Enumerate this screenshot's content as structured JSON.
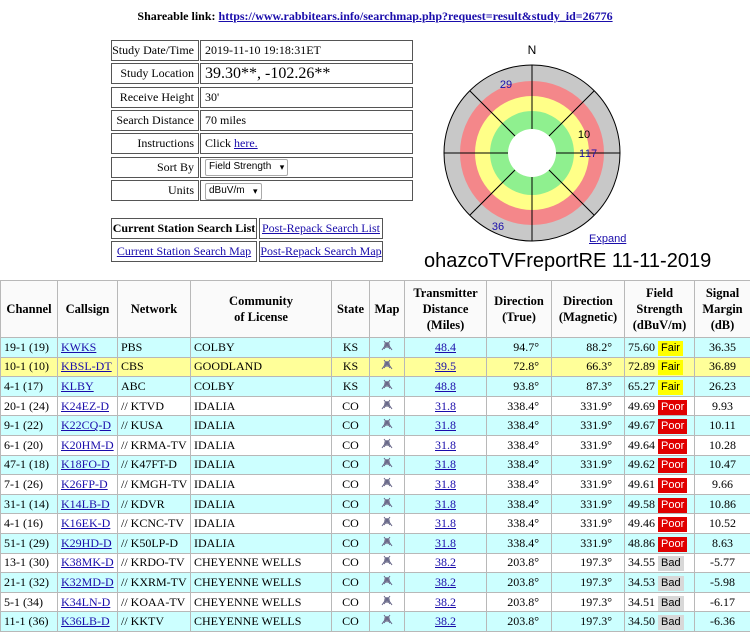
{
  "share": {
    "label": "Shareable link:",
    "url": "https://www.rabbitears.info/searchmap.php?request=result&study_id=26776"
  },
  "form": [
    {
      "label": "Study Date/Time",
      "value": "2019-11-10 19:18:31ET"
    },
    {
      "label": "Study Location",
      "value": "39.30**, -102.26**"
    },
    {
      "label": "Receive Height",
      "value": "30'"
    },
    {
      "label": "Search Distance",
      "value": "70 miles"
    },
    {
      "label": "Instructions",
      "value": "Click",
      "link": "here."
    },
    {
      "label": "Sort By",
      "select": "Field Strength"
    },
    {
      "label": "Units",
      "select": "dBuV/m"
    }
  ],
  "buttons": [
    "Current Station Search List",
    "Post-Repack Search List",
    "Current Station Search Map",
    "Post-Repack Search Map"
  ],
  "polar": {
    "north": "N",
    "labels": [
      "29",
      "10",
      "1",
      "17",
      "36"
    ],
    "expand": "Expand"
  },
  "report_title": "ohazcoTVFreportRE 11-11-2019",
  "table": {
    "headers": [
      [
        "Channel"
      ],
      [
        "Callsign"
      ],
      [
        "Network"
      ],
      [
        "Community",
        "of License"
      ],
      [
        "State"
      ],
      [
        "Map"
      ],
      [
        "Transmitter",
        "Distance",
        "(Miles)"
      ],
      [
        "Direction",
        "(True)"
      ],
      [
        "Direction",
        "(Magnetic)"
      ],
      [
        "Field",
        "Strength",
        "(dBuV/m)"
      ],
      [
        "Signal",
        "Margin",
        "(dB)"
      ]
    ],
    "rows": [
      [
        "19-1 (19)",
        "KWKS",
        "PBS",
        "COLBY",
        "KS",
        "48.4",
        "94.7°",
        "88.2°",
        "75.60",
        "Fair",
        "36.35"
      ],
      [
        "10-1 (10)",
        "KBSL-DT",
        "CBS",
        "GOODLAND",
        "KS",
        "39.5",
        "72.8°",
        "66.3°",
        "72.89",
        "Fair",
        "36.89"
      ],
      [
        "4-1 (17)",
        "KLBY",
        "ABC",
        "COLBY",
        "KS",
        "48.8",
        "93.8°",
        "87.3°",
        "65.27",
        "Fair",
        "26.23"
      ],
      [
        "20-1 (24)",
        "K24EZ-D",
        "// KTVD",
        "IDALIA",
        "CO",
        "31.8",
        "338.4°",
        "331.9°",
        "49.69",
        "Poor",
        "9.93"
      ],
      [
        "9-1 (22)",
        "K22CQ-D",
        "// KUSA",
        "IDALIA",
        "CO",
        "31.8",
        "338.4°",
        "331.9°",
        "49.67",
        "Poor",
        "10.11"
      ],
      [
        "6-1 (20)",
        "K20HM-D",
        "// KRMA-TV",
        "IDALIA",
        "CO",
        "31.8",
        "338.4°",
        "331.9°",
        "49.64",
        "Poor",
        "10.28"
      ],
      [
        "47-1 (18)",
        "K18FO-D",
        "// K47FT-D",
        "IDALIA",
        "CO",
        "31.8",
        "338.4°",
        "331.9°",
        "49.62",
        "Poor",
        "10.47"
      ],
      [
        "7-1 (26)",
        "K26FP-D",
        "// KMGH-TV",
        "IDALIA",
        "CO",
        "31.8",
        "338.4°",
        "331.9°",
        "49.61",
        "Poor",
        "9.66"
      ],
      [
        "31-1 (14)",
        "K14LB-D",
        "// KDVR",
        "IDALIA",
        "CO",
        "31.8",
        "338.4°",
        "331.9°",
        "49.58",
        "Poor",
        "10.86"
      ],
      [
        "4-1 (16)",
        "K16EK-D",
        "// KCNC-TV",
        "IDALIA",
        "CO",
        "31.8",
        "338.4°",
        "331.9°",
        "49.46",
        "Poor",
        "10.52"
      ],
      [
        "51-1 (29)",
        "K29HD-D",
        "// K50LP-D",
        "IDALIA",
        "CO",
        "31.8",
        "338.4°",
        "331.9°",
        "48.86",
        "Poor",
        "8.63"
      ],
      [
        "13-1 (30)",
        "K38MK-D",
        "// KRDO-TV",
        "CHEYENNE WELLS",
        "CO",
        "38.2",
        "203.8°",
        "197.3°",
        "34.55",
        "Bad",
        "-5.77"
      ],
      [
        "21-1 (32)",
        "K32MD-D",
        "// KXRM-TV",
        "CHEYENNE WELLS",
        "CO",
        "38.2",
        "203.8°",
        "197.3°",
        "34.53",
        "Bad",
        "-5.98"
      ],
      [
        "5-1 (34)",
        "K34LN-D",
        "// KOAA-TV",
        "CHEYENNE WELLS",
        "CO",
        "38.2",
        "203.8°",
        "197.3°",
        "34.51",
        "Bad",
        "-6.17"
      ],
      [
        "11-1 (36)",
        "K36LB-D",
        "// KKTV",
        "CHEYENNE WELLS",
        "CO",
        "38.2",
        "203.8°",
        "197.3°",
        "34.50",
        "Bad",
        "-6.36"
      ]
    ]
  }
}
